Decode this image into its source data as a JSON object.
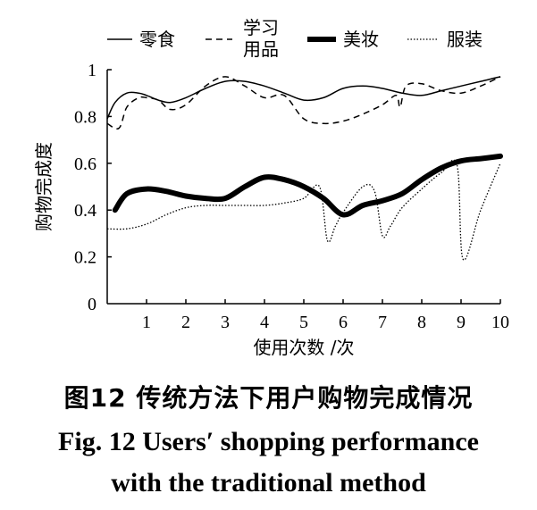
{
  "chart_data": {
    "type": "line",
    "xlabel": "使用次数 /次",
    "ylabel": "购物完成度",
    "xlim": [
      0,
      10
    ],
    "ylim": [
      0,
      1
    ],
    "x_ticks": [
      "1",
      "2",
      "3",
      "4",
      "5",
      "6",
      "7",
      "8",
      "9",
      "10"
    ],
    "y_ticks": [
      "0",
      "0.2",
      "0.4",
      "0.6",
      "0.8",
      "1"
    ],
    "legend_position": "top",
    "series": [
      {
        "name": "零食",
        "style": "solid-thin",
        "color": "#000000",
        "x": [
          0,
          0.2,
          0.5,
          0.8,
          1,
          1.3,
          1.6,
          2,
          2.5,
          3,
          3.5,
          4,
          4.5,
          5,
          5.5,
          6,
          6.5,
          7,
          7.5,
          8,
          8.5,
          9,
          9.5,
          10
        ],
        "y": [
          0.79,
          0.86,
          0.9,
          0.9,
          0.89,
          0.87,
          0.86,
          0.88,
          0.92,
          0.95,
          0.95,
          0.93,
          0.9,
          0.87,
          0.88,
          0.92,
          0.93,
          0.92,
          0.9,
          0.89,
          0.91,
          0.93,
          0.95,
          0.97
        ]
      },
      {
        "name": "学习用品",
        "style": "dashed",
        "color": "#000000",
        "x": [
          0,
          0.3,
          0.5,
          0.8,
          1,
          1.3,
          1.6,
          2,
          2.5,
          3,
          3.5,
          4,
          4.5,
          5,
          5.5,
          6,
          6.5,
          7,
          7.35,
          7.45,
          7.6,
          8,
          8.5,
          9,
          9.5,
          10
        ],
        "y": [
          0.77,
          0.75,
          0.84,
          0.88,
          0.88,
          0.87,
          0.83,
          0.85,
          0.93,
          0.97,
          0.93,
          0.88,
          0.89,
          0.79,
          0.77,
          0.78,
          0.81,
          0.85,
          0.89,
          0.84,
          0.93,
          0.94,
          0.91,
          0.9,
          0.93,
          0.97
        ]
      },
      {
        "name": "美妆",
        "style": "solid-thick",
        "color": "#000000",
        "x": [
          0.2,
          0.5,
          1,
          1.5,
          2,
          2.5,
          3,
          3.5,
          4,
          4.5,
          5,
          5.5,
          6,
          6.5,
          7,
          7.5,
          8,
          8.5,
          9,
          9.5,
          10
        ],
        "y": [
          0.4,
          0.47,
          0.49,
          0.48,
          0.46,
          0.45,
          0.45,
          0.5,
          0.54,
          0.53,
          0.5,
          0.45,
          0.38,
          0.42,
          0.44,
          0.47,
          0.53,
          0.58,
          0.61,
          0.62,
          0.63
        ]
      },
      {
        "name": "服装",
        "style": "dotted",
        "color": "#000000",
        "x": [
          0,
          0.5,
          1,
          1.5,
          2,
          2.5,
          3,
          3.5,
          4,
          4.5,
          5,
          5.4,
          5.6,
          5.8,
          6,
          6.5,
          6.8,
          7,
          7.2,
          7.5,
          8,
          8.5,
          8.9,
          9.05,
          9.5,
          10
        ],
        "y": [
          0.32,
          0.32,
          0.34,
          0.38,
          0.41,
          0.42,
          0.42,
          0.42,
          0.42,
          0.43,
          0.45,
          0.5,
          0.27,
          0.33,
          0.39,
          0.5,
          0.48,
          0.29,
          0.33,
          0.41,
          0.49,
          0.56,
          0.59,
          0.19,
          0.4,
          0.6
        ]
      }
    ]
  },
  "caption": {
    "chinese": "图12  传统方法下用户购物完成情况",
    "english_line1": "Fig. 12  Users′ shopping performance",
    "english_line2": "with the traditional method"
  }
}
